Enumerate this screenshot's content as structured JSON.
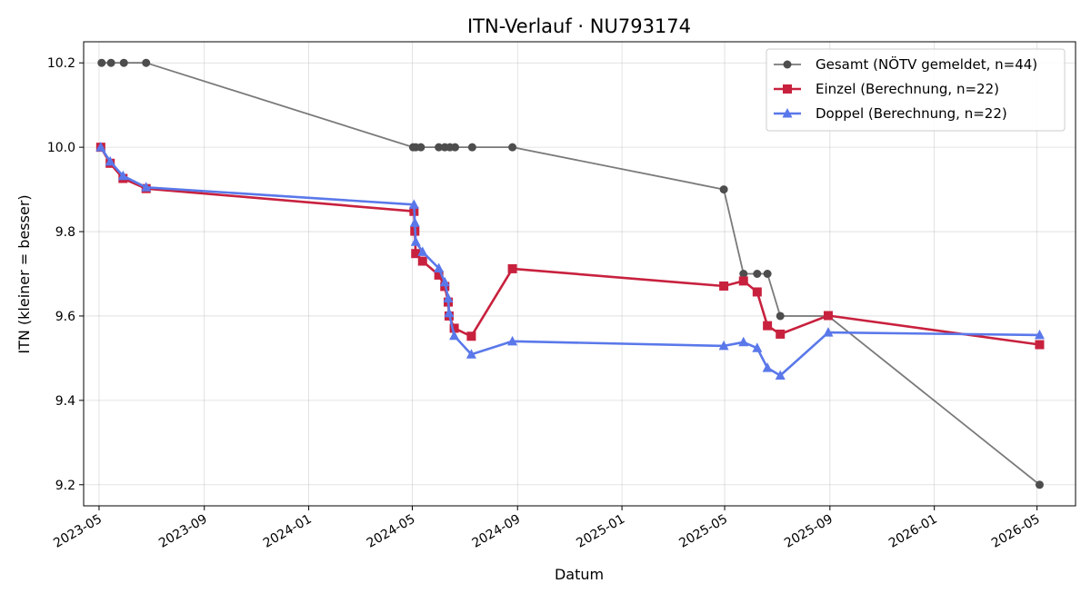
{
  "chart_data": {
    "type": "line",
    "title": "ITN-Verlauf · NU793174",
    "xlabel": "Datum",
    "ylabel": "ITN  (kleiner = besser)",
    "x_axis_type": "date",
    "xlim": [
      "2023-04-13",
      "2026-06-15"
    ],
    "ylim": [
      9.15,
      10.25
    ],
    "x_ticks": [
      "2023-05-01",
      "2023-09-01",
      "2024-01-01",
      "2024-05-01",
      "2024-09-01",
      "2025-01-01",
      "2025-05-01",
      "2025-09-01",
      "2026-01-01",
      "2026-05-01"
    ],
    "x_tick_labels": [
      "2023-05",
      "2023-09",
      "2024-01",
      "2024-05",
      "2024-09",
      "2025-01",
      "2025-05",
      "2025-09",
      "2026-01",
      "2026-05"
    ],
    "y_ticks": [
      9.2,
      9.4,
      9.6,
      9.8,
      10.0,
      10.2
    ],
    "y_tick_labels": [
      "9.2",
      "9.4",
      "9.6",
      "9.8",
      "10.0",
      "10.2"
    ],
    "grid": true,
    "legend_position": "top-right",
    "series": [
      {
        "name": "Gesamt (NÖTV gemeldet, n=44)",
        "color": "#4d4d4d",
        "marker": "circle",
        "points": [
          [
            "2023-05-04",
            10.2
          ],
          [
            "2023-05-15",
            10.2
          ],
          [
            "2023-05-30",
            10.2
          ],
          [
            "2023-06-25",
            10.2
          ],
          [
            "2024-05-02",
            10.0
          ],
          [
            "2024-05-05",
            10.0
          ],
          [
            "2024-05-11",
            10.0
          ],
          [
            "2024-06-01",
            10.0
          ],
          [
            "2024-06-08",
            10.0
          ],
          [
            "2024-06-14",
            10.0
          ],
          [
            "2024-06-20",
            10.0
          ],
          [
            "2024-07-10",
            10.0
          ],
          [
            "2024-08-26",
            10.0
          ],
          [
            "2025-04-30",
            9.9
          ],
          [
            "2025-05-23",
            9.7
          ],
          [
            "2025-06-08",
            9.7
          ],
          [
            "2025-06-20",
            9.7
          ],
          [
            "2025-07-05",
            9.6
          ],
          [
            "2025-08-30",
            9.6
          ],
          [
            "2026-05-04",
            9.2
          ]
        ]
      },
      {
        "name": "Einzel (Berechnung, n=22)",
        "color": "#c8213e",
        "marker": "square",
        "points": [
          [
            "2023-05-03",
            10.0
          ],
          [
            "2023-05-14",
            9.962
          ],
          [
            "2023-05-29",
            9.926
          ],
          [
            "2023-06-25",
            9.902
          ],
          [
            "2024-05-03",
            9.848
          ],
          [
            "2024-05-04",
            9.801
          ],
          [
            "2024-05-05",
            9.748
          ],
          [
            "2024-05-13",
            9.73
          ],
          [
            "2024-06-01",
            9.697
          ],
          [
            "2024-06-08",
            9.67
          ],
          [
            "2024-06-12",
            9.633
          ],
          [
            "2024-06-13",
            9.6
          ],
          [
            "2024-06-19",
            9.571
          ],
          [
            "2024-07-09",
            9.552
          ],
          [
            "2024-08-26",
            9.712
          ],
          [
            "2025-04-30",
            9.671
          ],
          [
            "2025-05-23",
            9.683
          ],
          [
            "2025-06-08",
            9.657
          ],
          [
            "2025-06-20",
            9.577
          ],
          [
            "2025-07-05",
            9.557
          ],
          [
            "2025-08-30",
            9.601
          ],
          [
            "2026-05-04",
            9.532
          ]
        ]
      },
      {
        "name": "Doppel (Berechnung, n=22)",
        "color": "#5a78ea",
        "marker": "triangle",
        "points": [
          [
            "2023-05-03",
            10.0
          ],
          [
            "2023-05-14",
            9.966
          ],
          [
            "2023-05-29",
            9.932
          ],
          [
            "2023-06-25",
            9.905
          ],
          [
            "2024-05-03",
            9.864
          ],
          [
            "2024-05-04",
            9.821
          ],
          [
            "2024-05-05",
            9.776
          ],
          [
            "2024-05-13",
            9.752
          ],
          [
            "2024-06-01",
            9.713
          ],
          [
            "2024-06-08",
            9.68
          ],
          [
            "2024-06-12",
            9.642
          ],
          [
            "2024-06-13",
            9.607
          ],
          [
            "2024-06-19",
            9.553
          ],
          [
            "2024-07-09",
            9.509
          ],
          [
            "2024-08-26",
            9.54
          ],
          [
            "2025-04-30",
            9.529
          ],
          [
            "2025-05-23",
            9.538
          ],
          [
            "2025-06-08",
            9.524
          ],
          [
            "2025-06-20",
            9.477
          ],
          [
            "2025-07-05",
            9.459
          ],
          [
            "2025-08-30",
            9.561
          ],
          [
            "2026-05-04",
            9.555
          ]
        ]
      }
    ]
  }
}
